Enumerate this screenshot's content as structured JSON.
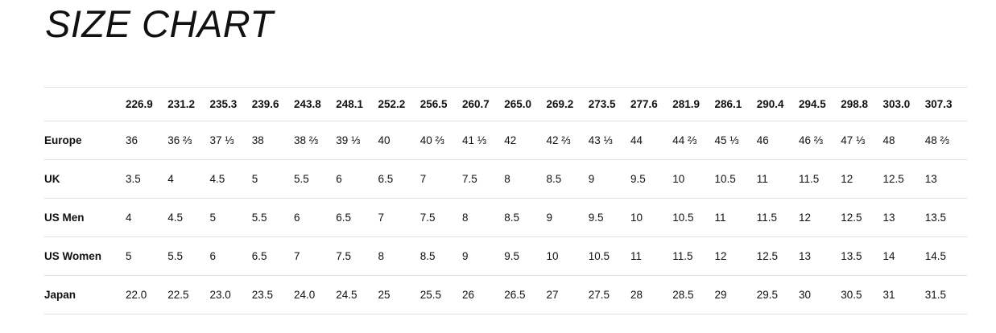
{
  "page": {
    "title": "SIZE CHART"
  },
  "colors": {
    "text": "#111111",
    "border": "#e0e0e0",
    "background": "#ffffff"
  },
  "chart_data": {
    "type": "table",
    "title": "SIZE CHART",
    "columns": [
      "226.9",
      "231.2",
      "235.3",
      "239.6",
      "243.8",
      "248.1",
      "252.2",
      "256.5",
      "260.7",
      "265.0",
      "269.2",
      "273.5",
      "277.6",
      "281.9",
      "286.1",
      "290.4",
      "294.5",
      "298.8",
      "303.0",
      "307.3"
    ],
    "rows": [
      {
        "label": "Europe",
        "values": [
          "36",
          "36 ⅔",
          "37 ⅓",
          "38",
          "38 ⅔",
          "39 ⅓",
          "40",
          "40 ⅔",
          "41 ⅓",
          "42",
          "42 ⅔",
          "43 ⅓",
          "44",
          "44 ⅔",
          "45 ⅓",
          "46",
          "46 ⅔",
          "47 ⅓",
          "48",
          "48 ⅔"
        ]
      },
      {
        "label": "UK",
        "values": [
          "3.5",
          "4",
          "4.5",
          "5",
          "5.5",
          "6",
          "6.5",
          "7",
          "7.5",
          "8",
          "8.5",
          "9",
          "9.5",
          "10",
          "10.5",
          "11",
          "11.5",
          "12",
          "12.5",
          "13"
        ]
      },
      {
        "label": "US Men",
        "values": [
          "4",
          "4.5",
          "5",
          "5.5",
          "6",
          "6.5",
          "7",
          "7.5",
          "8",
          "8.5",
          "9",
          "9.5",
          "10",
          "10.5",
          "11",
          "11.5",
          "12",
          "12.5",
          "13",
          "13.5"
        ]
      },
      {
        "label": "US Women",
        "values": [
          "5",
          "5.5",
          "6",
          "6.5",
          "7",
          "7.5",
          "8",
          "8.5",
          "9",
          "9.5",
          "10",
          "10.5",
          "11",
          "11.5",
          "12",
          "12.5",
          "13",
          "13.5",
          "14",
          "14.5"
        ]
      },
      {
        "label": "Japan",
        "values": [
          "22.0",
          "22.5",
          "23.0",
          "23.5",
          "24.0",
          "24.5",
          "25",
          "25.5",
          "26",
          "26.5",
          "27",
          "27.5",
          "28",
          "28.5",
          "29",
          "29.5",
          "30",
          "30.5",
          "31",
          "31.5"
        ]
      }
    ]
  }
}
